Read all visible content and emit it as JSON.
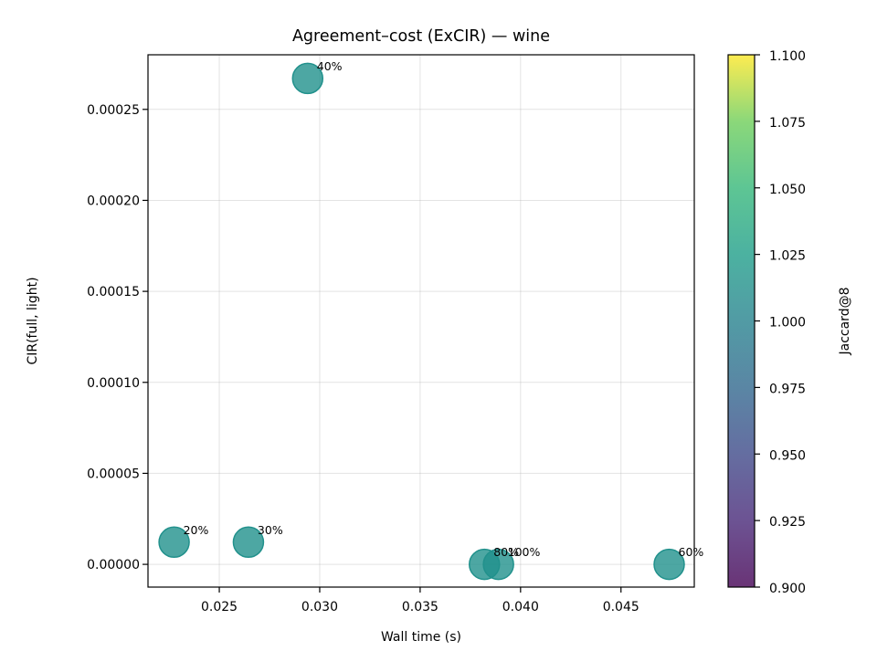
{
  "chart_data": {
    "type": "scatter",
    "title": "Agreement–cost (ExCIR) — wine",
    "xlabel": "Wall time (s)",
    "ylabel": "CIR(full, light)",
    "xlim": [
      0.02145,
      0.04865
    ],
    "ylim": [
      -1.25e-05,
      0.00028
    ],
    "xticks": [
      0.025,
      0.03,
      0.035,
      0.04,
      0.045
    ],
    "xtick_labels": [
      "0.025",
      "0.030",
      "0.035",
      "0.040",
      "0.045"
    ],
    "yticks": [
      0.0,
      5e-05,
      0.0001,
      0.00015,
      0.0002,
      0.00025
    ],
    "ytick_labels": [
      "0.00000",
      "0.00005",
      "0.00010",
      "0.00015",
      "0.00020",
      "0.00025"
    ],
    "grid": true,
    "points": [
      {
        "label": "20%",
        "x": 0.02275,
        "y": 1.22e-05,
        "color_value": 1.0
      },
      {
        "label": "30%",
        "x": 0.02645,
        "y": 1.22e-05,
        "color_value": 1.0
      },
      {
        "label": "40%",
        "x": 0.0294,
        "y": 0.000267,
        "color_value": 1.0
      },
      {
        "label": "80%",
        "x": 0.0382,
        "y": 0.0,
        "color_value": 1.0
      },
      {
        "label": "100%",
        "x": 0.0389,
        "y": 0.0,
        "color_value": 1.0
      },
      {
        "label": "60%",
        "x": 0.0474,
        "y": 0.0,
        "color_value": 1.0
      }
    ],
    "colorbar": {
      "label": "Jaccard@8",
      "colormap": "viridis",
      "range": [
        0.9,
        1.1
      ],
      "ticks": [
        0.9,
        0.925,
        0.95,
        0.975,
        1.0,
        1.025,
        1.05,
        1.075,
        1.1
      ],
      "tick_labels": [
        "0.900",
        "0.925",
        "0.950",
        "0.975",
        "1.000",
        "1.025",
        "1.050",
        "1.075",
        "1.100"
      ]
    },
    "marker_color": "#21918c"
  }
}
